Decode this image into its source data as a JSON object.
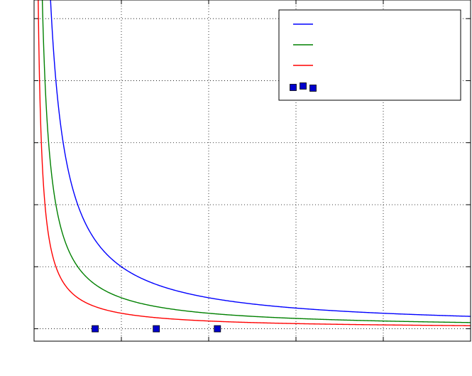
{
  "chart_data": {
    "type": "line",
    "title": "",
    "xlabel": "",
    "ylabel": "",
    "xlim": [
      0,
      5
    ],
    "ylim": [
      -0.2,
      5.3
    ],
    "xticks": [
      0,
      1,
      2,
      3,
      4,
      5
    ],
    "yticks": [
      0,
      1,
      2,
      3,
      4,
      5
    ],
    "xtick_labels": [],
    "ytick_labels": [],
    "grid": true,
    "legend_position": "top-right",
    "series": [
      {
        "kind": "line",
        "formula": "1/x",
        "color": "#0000ff",
        "x": [
          0.5,
          0.75,
          1,
          1.5,
          2,
          2.5,
          3,
          4,
          5
        ],
        "y": [
          2.0,
          1.333,
          1.0,
          0.667,
          0.5,
          0.4,
          0.333,
          0.25,
          0.2
        ]
      },
      {
        "kind": "line",
        "formula": "1/(2x)",
        "color": "#008000",
        "x": [
          0.25,
          0.5,
          0.75,
          1,
          1.5,
          2,
          3,
          4,
          5
        ],
        "y": [
          2.0,
          1.0,
          0.667,
          0.5,
          0.333,
          0.25,
          0.167,
          0.125,
          0.1
        ]
      },
      {
        "kind": "line",
        "formula": "1/(4x)",
        "color": "#ff0000",
        "x": [
          0.125,
          0.25,
          0.5,
          0.75,
          1,
          2,
          3,
          4,
          5
        ],
        "y": [
          2.0,
          1.0,
          0.5,
          0.333,
          0.25,
          0.125,
          0.083,
          0.0625,
          0.05
        ]
      },
      {
        "kind": "scatter",
        "marker": "square",
        "color": "#0000cc",
        "x": [
          0.7,
          1.4,
          2.1
        ],
        "y": [
          0,
          0,
          0
        ]
      }
    ]
  },
  "legend": {
    "entries": [
      {
        "label": "",
        "color": "#0000ff",
        "marker": "line"
      },
      {
        "label": "",
        "color": "#008000",
        "marker": "line"
      },
      {
        "label": "",
        "color": "#ff0000",
        "marker": "line"
      },
      {
        "label": "",
        "color": "#0000cc",
        "marker": "squares"
      }
    ]
  }
}
